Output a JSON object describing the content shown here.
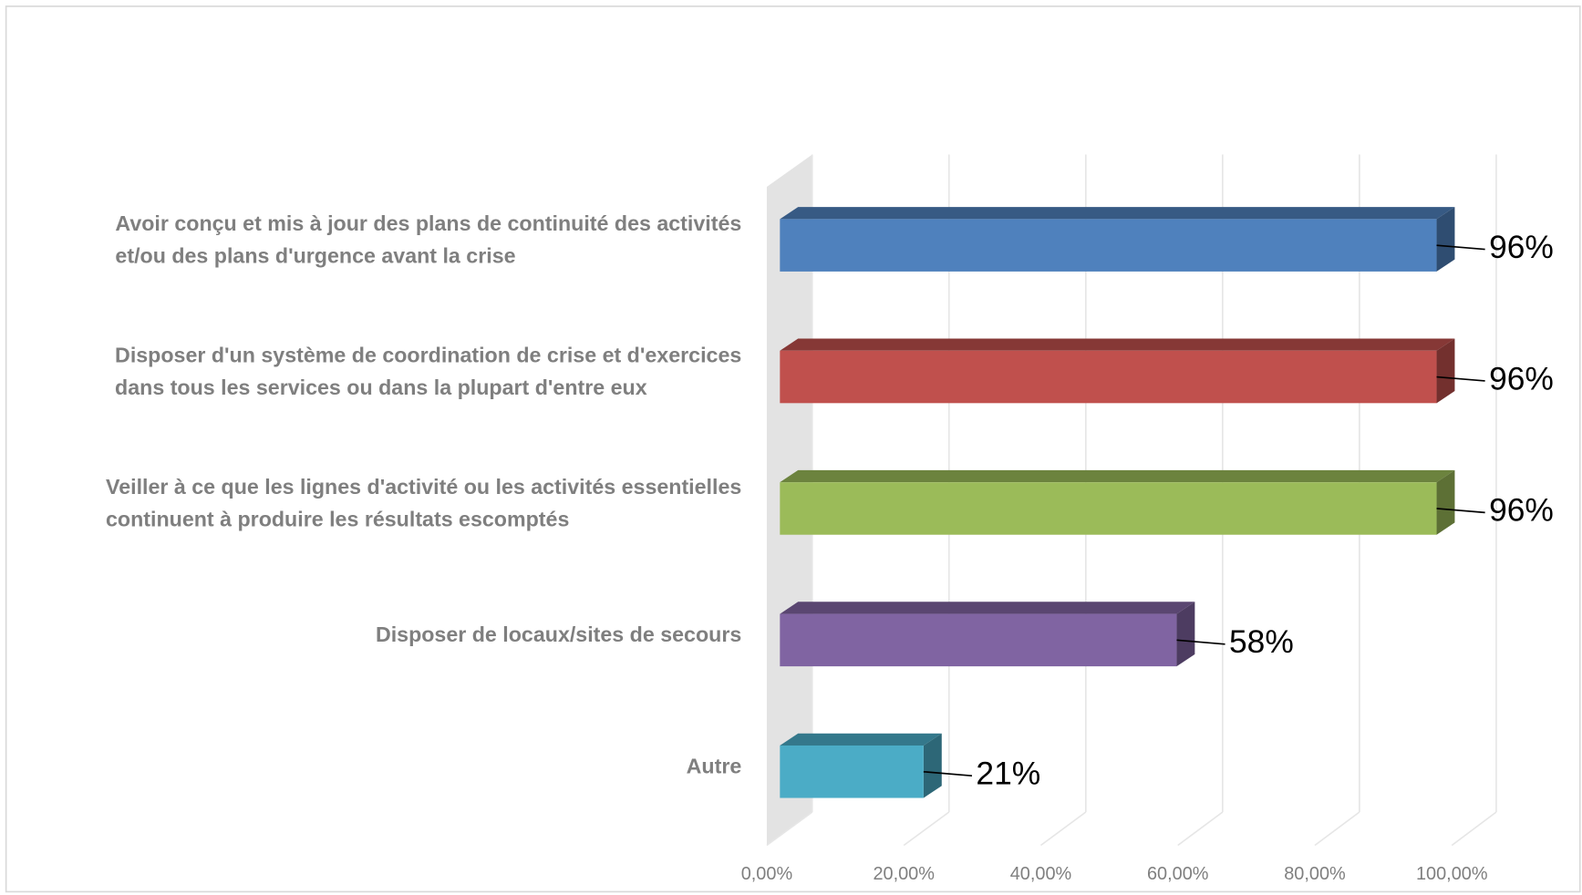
{
  "chart_data": {
    "type": "bar3d-horizontal",
    "categories": [
      [
        "Avoir conçu et mis à jour des plans de continuité des activités",
        "et/ou des plans d'urgence avant la crise"
      ],
      [
        "Disposer d'un système de coordination de crise et d'exercices",
        "dans tous les services ou dans la plupart d'entre eux"
      ],
      [
        "Veiller à ce que les lignes d'activité ou les activités essentielles",
        "continuent à produire les résultats escomptés"
      ],
      [
        "Disposer de locaux/sites de secours"
      ],
      [
        "Autre"
      ]
    ],
    "values": [
      96,
      96,
      96,
      58,
      21
    ],
    "value_labels": [
      "96%",
      "96%",
      "96%",
      "58%",
      "21%"
    ],
    "colors": [
      "#4f81bd",
      "#c0504d",
      "#9bbb59",
      "#8064a2",
      "#4bacc6"
    ],
    "xlim": [
      0,
      100
    ],
    "xticks": [
      {
        "value": 0,
        "label": "0,00%"
      },
      {
        "value": 20,
        "label": "20,00%"
      },
      {
        "value": 40,
        "label": "40,00%"
      },
      {
        "value": 60,
        "label": "60,00%"
      },
      {
        "value": 80,
        "label": "80,00%"
      },
      {
        "value": 100,
        "label": "100,00%"
      }
    ],
    "grid": true
  }
}
